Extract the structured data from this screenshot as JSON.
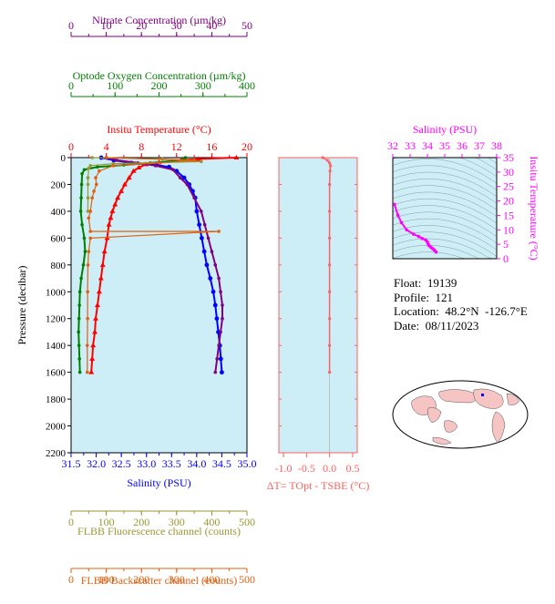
{
  "float_info": {
    "float": "Float:  19139",
    "profile": "Profile:  121",
    "location": "Location:  48.2°N  -126.7°E",
    "date": "Date:  08/11/2023"
  },
  "colors": {
    "temperature": "#ff0000",
    "salinity": "#0000ff",
    "oxygen": "#008000",
    "nitrate": "#800080",
    "fluorescence": "#999933",
    "backscatter": "#e06010",
    "delta_t": "#ff6060",
    "ts": "#ff00ff",
    "panel_bg": "#cdeef7"
  },
  "chart_data": [
    {
      "type": "line",
      "title": "",
      "ylabel": "Pressure (decibar)",
      "y_ticks": [
        "0",
        "200",
        "400",
        "600",
        "800",
        "1000",
        "1200",
        "1400",
        "1600",
        "1800",
        "2000",
        "2200"
      ],
      "ylim": [
        2200,
        0
      ],
      "axes": [
        {
          "position": "top-3",
          "label": "Nitrate Concentration (µm/kg)",
          "range": [
            0,
            50
          ],
          "ticks": [
            "0",
            "10",
            "20",
            "30",
            "40",
            "50"
          ],
          "color": "#800080"
        },
        {
          "position": "top-2",
          "label": "Optode Oxygen Concentration (µm/kg)",
          "range": [
            0,
            400
          ],
          "ticks": [
            "0",
            "100",
            "200",
            "300",
            "400"
          ],
          "color": "#008000"
        },
        {
          "position": "top-1",
          "label": "Insitu Temperature (°C)",
          "range": [
            0,
            20
          ],
          "ticks": [
            "0",
            "4",
            "8",
            "12",
            "16",
            "20"
          ],
          "color": "#ff0000"
        },
        {
          "position": "bottom-1",
          "label": "Salinity (PSU)",
          "range": [
            31.5,
            35.0
          ],
          "ticks": [
            "31.5",
            "32.0",
            "32.5",
            "33.0",
            "33.5",
            "34.0",
            "34.5",
            "35.0"
          ],
          "color": "#0000ff"
        },
        {
          "position": "bottom-2",
          "label": "FLBB Fluorescence channel (counts)",
          "range": [
            0,
            500
          ],
          "ticks": [
            "0",
            "100",
            "200",
            "300",
            "400",
            "500"
          ],
          "color": "#999933"
        },
        {
          "position": "bottom-3",
          "label": "FLBB Backscatter channel (counts)",
          "range": [
            0,
            500
          ],
          "ticks": [
            "0",
            "100",
            "200",
            "300",
            "400",
            "500"
          ],
          "color": "#e06010"
        }
      ],
      "series": [
        {
          "key": "temperature",
          "axis": 2,
          "points": [
            [
              18.8,
              0
            ],
            [
              14.5,
              10
            ],
            [
              12.5,
              20
            ],
            [
              10.0,
              35
            ],
            [
              8.5,
              50
            ],
            [
              7.7,
              75
            ],
            [
              7.1,
              100
            ],
            [
              6.6,
              150
            ],
            [
              6.1,
              200
            ],
            [
              5.7,
              250
            ],
            [
              5.3,
              300
            ],
            [
              5.0,
              350
            ],
            [
              4.7,
              400
            ],
            [
              4.5,
              450
            ],
            [
              4.3,
              500
            ],
            [
              4.1,
              600
            ],
            [
              3.8,
              700
            ],
            [
              3.6,
              800
            ],
            [
              3.4,
              900
            ],
            [
              3.2,
              1000
            ],
            [
              3.0,
              1100
            ],
            [
              2.8,
              1200
            ],
            [
              2.7,
              1300
            ],
            [
              2.5,
              1400
            ],
            [
              2.4,
              1500
            ],
            [
              2.3,
              1600
            ]
          ]
        },
        {
          "key": "salinity",
          "axis": 3,
          "points": [
            [
              32.1,
              0
            ],
            [
              32.35,
              20
            ],
            [
              32.7,
              40
            ],
            [
              33.2,
              55
            ],
            [
              33.45,
              70
            ],
            [
              33.6,
              100
            ],
            [
              33.75,
              150
            ],
            [
              33.85,
              200
            ],
            [
              33.92,
              250
            ],
            [
              33.97,
              300
            ],
            [
              34.0,
              400
            ],
            [
              34.05,
              500
            ],
            [
              34.1,
              600
            ],
            [
              34.15,
              700
            ],
            [
              34.2,
              800
            ],
            [
              34.27,
              900
            ],
            [
              34.33,
              1000
            ],
            [
              34.37,
              1100
            ],
            [
              34.4,
              1200
            ],
            [
              34.43,
              1300
            ],
            [
              34.46,
              1400
            ],
            [
              34.48,
              1500
            ],
            [
              34.5,
              1600
            ]
          ]
        },
        {
          "key": "oxygen",
          "axis": 1,
          "points": [
            [
              260,
              0
            ],
            [
              250,
              20
            ],
            [
              180,
              40
            ],
            [
              120,
              55
            ],
            [
              60,
              70
            ],
            [
              30,
              90
            ],
            [
              25,
              120
            ],
            [
              24,
              200
            ],
            [
              23,
              300
            ],
            [
              22,
              400
            ],
            [
              25,
              500
            ],
            [
              30,
              600
            ],
            [
              32,
              700
            ],
            [
              28,
              800
            ],
            [
              23,
              900
            ],
            [
              20,
              1000
            ],
            [
              19,
              1100
            ],
            [
              18,
              1200
            ],
            [
              17,
              1300
            ],
            [
              18,
              1400
            ],
            [
              19,
              1500
            ],
            [
              20,
              1600
            ]
          ]
        },
        {
          "key": "nitrate",
          "axis": 0,
          "points": [
            [
              10,
              0
            ],
            [
              13,
              20
            ],
            [
              19,
              40
            ],
            [
              24,
              60
            ],
            [
              29,
              90
            ],
            [
              31,
              150
            ],
            [
              33,
              200
            ],
            [
              35,
              300
            ],
            [
              37,
              400
            ],
            [
              38,
              500
            ],
            [
              39,
              600
            ],
            [
              40,
              700
            ],
            [
              41,
              800
            ],
            [
              42,
              900
            ],
            [
              42.5,
              1000
            ],
            [
              43,
              1100
            ],
            [
              43,
              1200
            ],
            [
              42.5,
              1300
            ],
            [
              42,
              1400
            ],
            [
              41.5,
              1500
            ],
            [
              41,
              1600
            ]
          ]
        },
        {
          "key": "fluorescence",
          "axis": 4,
          "points": [
            [
              60,
              0
            ],
            [
              260,
              10
            ],
            [
              370,
              30
            ],
            [
              120,
              45
            ],
            [
              55,
              60
            ],
            [
              50,
              80
            ],
            [
              48,
              150
            ],
            [
              48,
              200
            ],
            [
              48,
              300
            ],
            [
              48,
              400
            ]
          ]
        },
        {
          "key": "backscatter",
          "axis": 5,
          "points": [
            [
              100,
              0
            ],
            [
              350,
              20
            ],
            [
              250,
              40
            ],
            [
              120,
              60
            ],
            [
              80,
              100
            ],
            [
              70,
              150
            ],
            [
              72,
              200
            ],
            [
              65,
              250
            ],
            [
              60,
              300
            ],
            [
              55,
              400
            ],
            [
              50,
              450
            ],
            [
              55,
              550
            ],
            [
              420,
              550
            ],
            [
              55,
              600
            ],
            [
              50,
              700
            ],
            [
              48,
              800
            ],
            [
              47,
              1000
            ],
            [
              47,
              1200
            ],
            [
              46,
              1400
            ],
            [
              46,
              1600
            ]
          ]
        }
      ]
    },
    {
      "type": "line",
      "xlabel": "ΔT= TOpt - TSBE (°C)",
      "xlim": [
        -1.1,
        0.6
      ],
      "x_ticks": [
        "-1.0",
        "-0.5",
        "0.0",
        "0.5"
      ],
      "ylim": [
        2200,
        0
      ],
      "series": [
        {
          "key": "delta_t",
          "points": [
            [
              -0.15,
              0
            ],
            [
              -0.05,
              20
            ],
            [
              0.0,
              40
            ],
            [
              0.02,
              60
            ],
            [
              0.01,
              100
            ],
            [
              0.0,
              200
            ],
            [
              0.0,
              400
            ],
            [
              0.0,
              600
            ],
            [
              0.0,
              800
            ],
            [
              0.0,
              1000
            ],
            [
              0.0,
              1200
            ],
            [
              0.0,
              1400
            ],
            [
              0.0,
              1600
            ]
          ]
        }
      ]
    },
    {
      "type": "scatter",
      "xlabel": "Salinity (PSU)",
      "ylabel": "Insitu Temperature (°C)",
      "xlim": [
        32,
        38
      ],
      "x_ticks": [
        "32",
        "33",
        "34",
        "35",
        "36",
        "37",
        "38"
      ],
      "ylim": [
        0,
        35
      ],
      "y_ticks": [
        "0",
        "5",
        "10",
        "15",
        "20",
        "25",
        "30",
        "35"
      ],
      "series": [
        {
          "key": "ts",
          "points": [
            [
              32.1,
              18.8
            ],
            [
              32.3,
              15.0
            ],
            [
              32.5,
              12.5
            ],
            [
              32.8,
              10.0
            ],
            [
              33.2,
              8.5
            ],
            [
              33.5,
              7.7
            ],
            [
              33.7,
              7.0
            ],
            [
              33.9,
              6.5
            ],
            [
              34.0,
              5.8
            ],
            [
              34.05,
              5.0
            ],
            [
              34.1,
              4.5
            ],
            [
              34.2,
              4.0
            ],
            [
              34.3,
              3.5
            ],
            [
              34.4,
              3.0
            ],
            [
              34.5,
              2.3
            ]
          ]
        }
      ]
    }
  ]
}
